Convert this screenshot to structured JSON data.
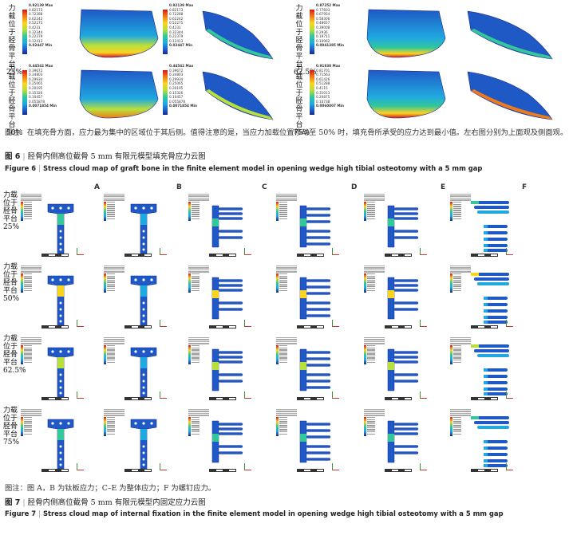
{
  "fig6": {
    "panels": [
      {
        "label": "力载位于胫骨平台 25%",
        "max": "0.92139 Max",
        "values": [
          "0.82173",
          "0.72288",
          "0.62242",
          "0.52275",
          "0.4231",
          "0.32344",
          "0.22379",
          "0.12413"
        ],
        "min": "0.02447 Min"
      },
      {
        "label": "力载位于胫骨平台 62.5%",
        "max": "0.87252 Max",
        "values": [
          "0.77603",
          "0.67954",
          "0.58306",
          "0.48657",
          "0.39008",
          "0.2936",
          "0.19711",
          "0.10062"
        ],
        "min": "0.0041385 Min"
      },
      {
        "label": "力载位于胫骨平台 50%",
        "max": "0.44542 Max",
        "values": [
          "0.39672",
          "0.34803",
          "0.29934",
          "0.25065",
          "0.20195",
          "0.15326",
          "0.10457",
          "0.055878"
        ],
        "min": "0.0071854 Min"
      },
      {
        "label": "力载位于胫骨平台 75%",
        "max": "0.91838 Max",
        "values": [
          "0.81701",
          "0.71563",
          "0.61426",
          "0.51288",
          "0.4115",
          "0.31013",
          "0.20875",
          "0.10738"
        ],
        "min": "0.0060007 Min"
      }
    ],
    "legend_right_top": {
      "max": "0.92139 Max",
      "values": [
        "0.82173",
        "0.72288",
        "0.62242",
        "0.52275",
        "0.4231",
        "0.32344",
        "0.22379",
        "0.12413"
      ],
      "min": "0.02447 Min"
    },
    "legend_right_bottom": {
      "max": "0.44542 Max",
      "values": [
        "0.39672",
        "0.34803",
        "0.29934",
        "0.25065",
        "0.20195",
        "0.15326",
        "0.10457",
        "0.055878"
      ],
      "min": "0.0071854 Min"
    },
    "note": "图注：在填充骨方面，应力最为集中的区域位于其后侧。值得注意的是，当应力加载位置移动至 50% 时，填充骨所承受的应力达到最小值。左右图分别为上面观及侧面观。",
    "caption_cn_label": "图 6",
    "caption_cn": "胫骨内侧高位截骨 5 mm 有限元模型填充骨应力云图",
    "caption_en_label": "Figure 6",
    "caption_en": "Stress cloud map of graft bone in the finite element model in opening wedge high tibial osteotomy with a 5 mm gap"
  },
  "fig7": {
    "columns": [
      "A",
      "B",
      "C",
      "D",
      "E",
      "F"
    ],
    "rows": [
      "力载位于胫骨平台 25%",
      "力载位于胫骨平台 50%",
      "力载位于胫骨平台 62.5%",
      "力载位于胫骨平台 75%"
    ],
    "note": "图注：图 A，B 为钛板应力；C–E 为整体应力；F 为螺钉应力。",
    "caption_cn_label": "图 7",
    "caption_cn": "胫骨内侧高位截骨 5 mm 有限元模型内固定应力云图",
    "caption_en_label": "Figure 7",
    "caption_en": "Stress cloud map of internal fixation in the finite element model in opening wedge high tibial osteotomy with a 5 mm gap"
  }
}
